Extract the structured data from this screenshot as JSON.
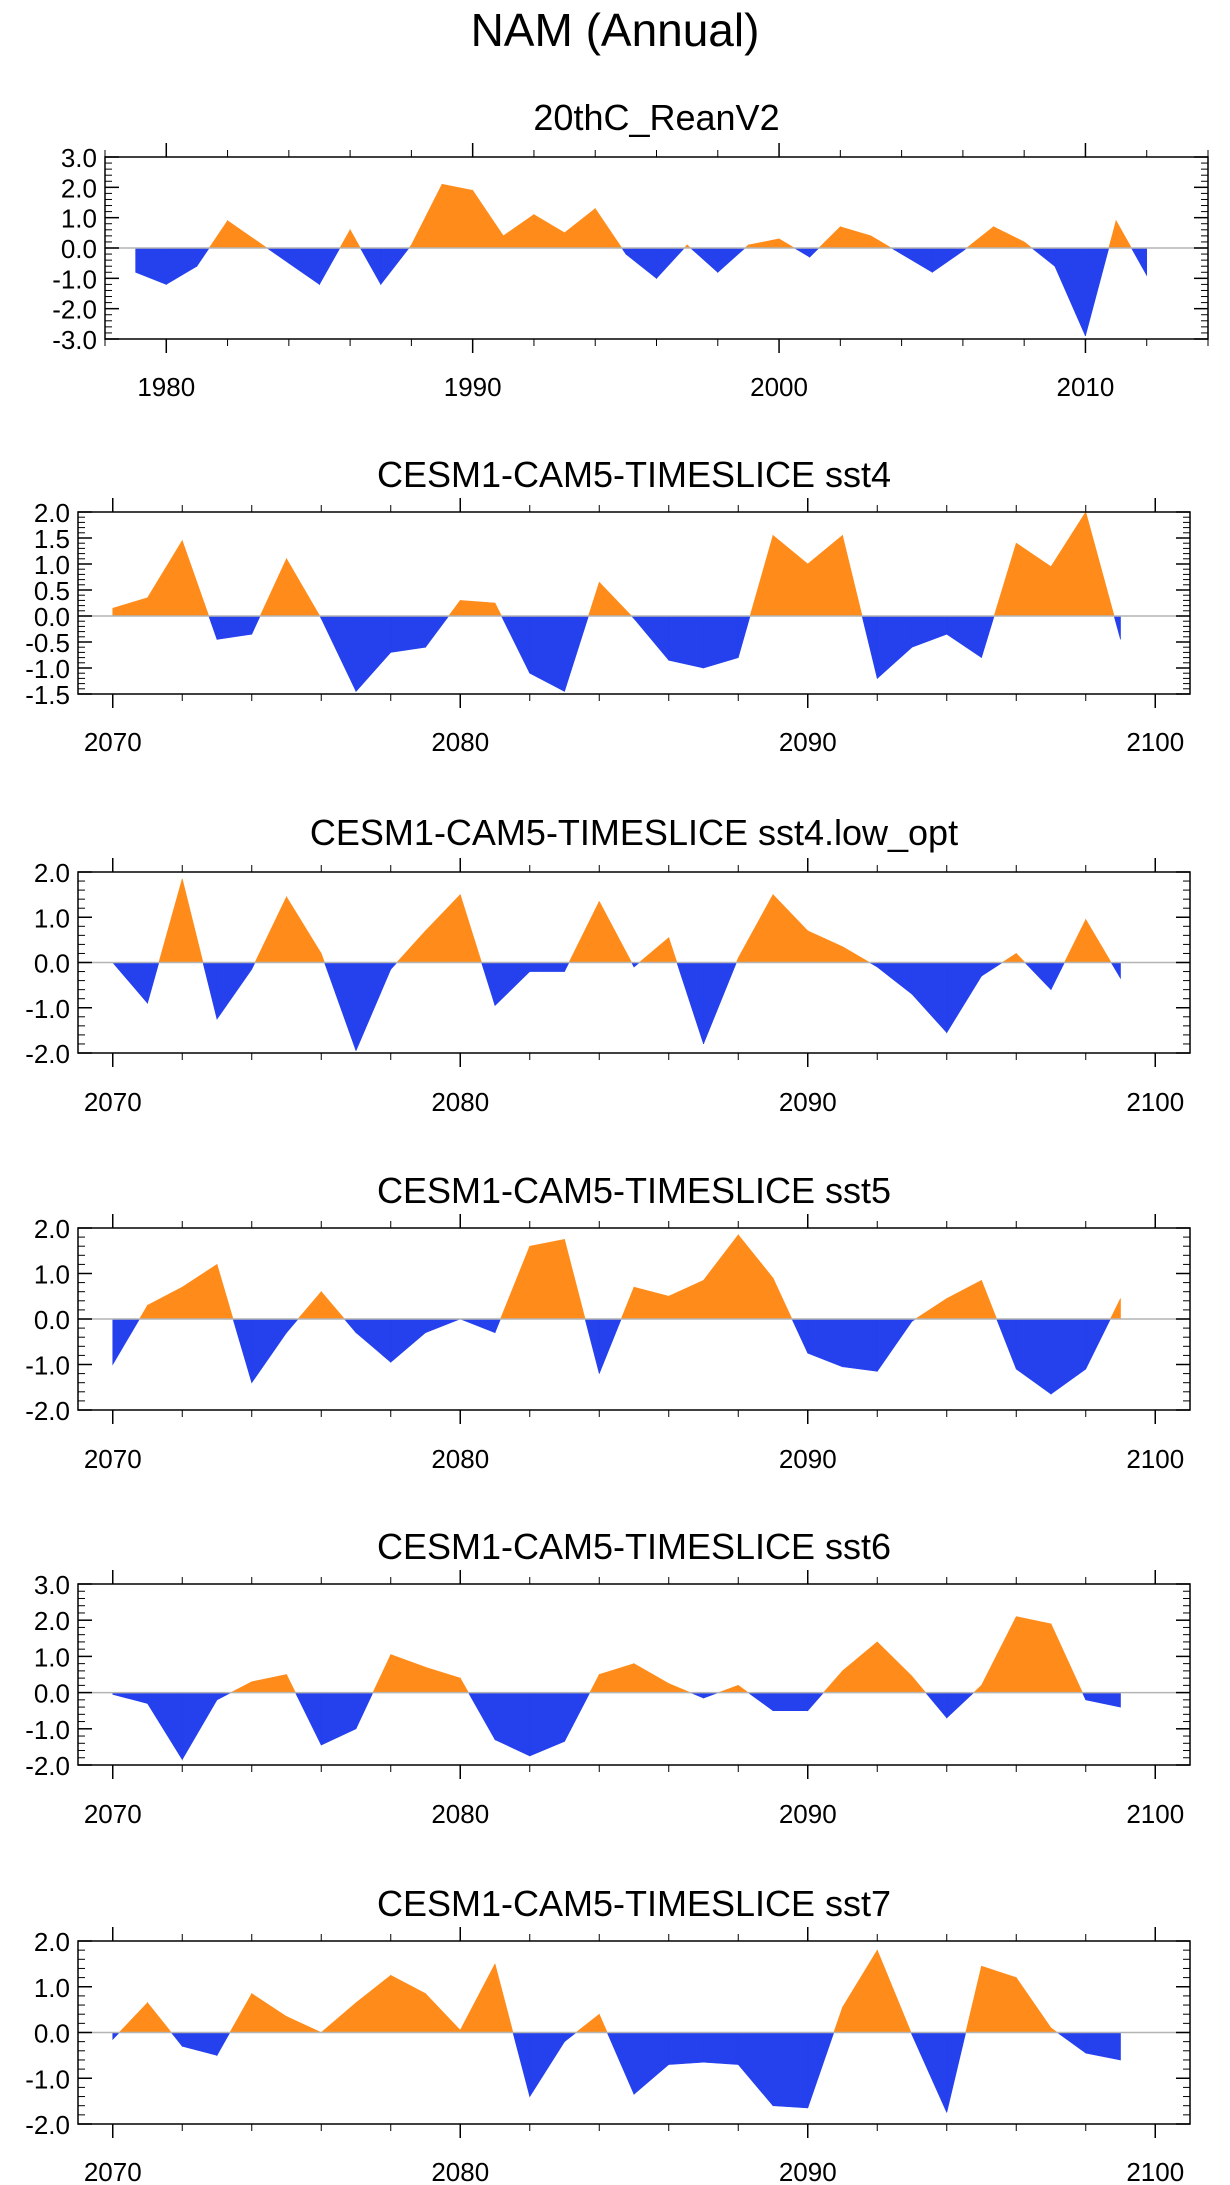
{
  "figure_title": "NAM (Annual)",
  "colors": {
    "positive": "#FF8C1A",
    "negative": "#2541EE",
    "zero_line": "#B4B4B4",
    "axis": "#000000"
  },
  "chart_data": [
    {
      "type": "area",
      "title": "20thC_ReanV2",
      "x": [
        1979,
        1980,
        1981,
        1982,
        1983,
        1984,
        1985,
        1986,
        1987,
        1988,
        1989,
        1990,
        1991,
        1992,
        1993,
        1994,
        1995,
        1996,
        1997,
        1998,
        1999,
        2000,
        2001,
        2002,
        2003,
        2004,
        2005,
        2006,
        2007,
        2008,
        2009,
        2010,
        2011,
        2012
      ],
      "values": [
        -0.8,
        -1.2,
        -0.6,
        0.9,
        0.2,
        -0.5,
        -1.2,
        0.6,
        -1.2,
        0.1,
        2.1,
        1.9,
        0.4,
        1.1,
        0.5,
        1.3,
        -0.2,
        -1.0,
        0.1,
        -0.8,
        0.1,
        0.3,
        -0.3,
        0.7,
        0.4,
        -0.2,
        -0.8,
        -0.1,
        0.7,
        0.2,
        -0.6,
        -2.9,
        0.9,
        -0.9
      ],
      "xlim": [
        1978,
        2014
      ],
      "ylim": [
        -3.0,
        3.0
      ],
      "xticks": [
        "1980",
        "1990",
        "2000",
        "2010"
      ],
      "yticks": [
        "3.0",
        "2.0",
        "1.0",
        "0.0",
        "-1.0",
        "-2.0",
        "-3.0"
      ]
    },
    {
      "type": "area",
      "title": "CESM1-CAM5-TIMESLICE sst4",
      "x": [
        2070,
        2071,
        2072,
        2073,
        2074,
        2075,
        2076,
        2077,
        2078,
        2079,
        2080,
        2081,
        2082,
        2083,
        2084,
        2085,
        2086,
        2087,
        2088,
        2089,
        2090,
        2091,
        2092,
        2093,
        2094,
        2095,
        2096,
        2097,
        2098,
        2099
      ],
      "values": [
        0.15,
        0.35,
        1.45,
        -0.45,
        -0.35,
        1.1,
        -0.05,
        -1.45,
        -0.7,
        -0.6,
        0.3,
        0.25,
        -1.1,
        -1.45,
        0.65,
        -0.05,
        -0.85,
        -1.0,
        -0.8,
        1.55,
        1.0,
        1.55,
        -1.2,
        -0.6,
        -0.35,
        -0.8,
        1.4,
        0.95,
        2.0,
        -0.45
      ],
      "xlim": [
        2069,
        2101
      ],
      "ylim": [
        -1.5,
        2.0
      ],
      "xticks": [
        "2070",
        "2080",
        "2090",
        "2100"
      ],
      "yticks": [
        "2.0",
        "1.5",
        "1.0",
        "0.5",
        "0.0",
        "-0.5",
        "-1.0",
        "-1.5"
      ]
    },
    {
      "type": "area",
      "title": "CESM1-CAM5-TIMESLICE sst4.low_opt",
      "x": [
        2070,
        2071,
        2072,
        2073,
        2074,
        2075,
        2076,
        2077,
        2078,
        2079,
        2080,
        2081,
        2082,
        2083,
        2084,
        2085,
        2086,
        2087,
        2088,
        2089,
        2090,
        2091,
        2092,
        2093,
        2094,
        2095,
        2096,
        2097,
        2098,
        2099
      ],
      "values": [
        0.0,
        -0.9,
        1.85,
        -1.25,
        -0.15,
        1.45,
        0.2,
        -1.95,
        -0.15,
        0.7,
        1.5,
        -0.95,
        -0.2,
        -0.2,
        1.35,
        -0.1,
        0.55,
        -1.8,
        0.1,
        1.5,
        0.7,
        0.35,
        -0.1,
        -0.7,
        -1.55,
        -0.3,
        0.2,
        -0.6,
        0.95,
        -0.35
      ],
      "xlim": [
        2069,
        2101
      ],
      "ylim": [
        -2.0,
        2.0
      ],
      "xticks": [
        "2070",
        "2080",
        "2090",
        "2100"
      ],
      "yticks": [
        "2.0",
        "1.0",
        "0.0",
        "-1.0",
        "-2.0"
      ]
    },
    {
      "type": "area",
      "title": "CESM1-CAM5-TIMESLICE sst5",
      "x": [
        2070,
        2071,
        2072,
        2073,
        2074,
        2075,
        2076,
        2077,
        2078,
        2079,
        2080,
        2081,
        2082,
        2083,
        2084,
        2085,
        2086,
        2087,
        2088,
        2089,
        2090,
        2091,
        2092,
        2093,
        2094,
        2095,
        2096,
        2097,
        2098,
        2099
      ],
      "values": [
        -1.0,
        0.3,
        0.7,
        1.2,
        -1.4,
        -0.3,
        0.6,
        -0.3,
        -0.95,
        -0.3,
        0.0,
        -0.3,
        1.6,
        1.75,
        -1.2,
        0.7,
        0.5,
        0.85,
        1.85,
        0.9,
        -0.75,
        -1.05,
        -1.15,
        -0.05,
        0.45,
        0.85,
        -1.1,
        -1.65,
        -1.1,
        0.45
      ],
      "xlim": [
        2069,
        2101
      ],
      "ylim": [
        -2.0,
        2.0
      ],
      "xticks": [
        "2070",
        "2080",
        "2090",
        "2100"
      ],
      "yticks": [
        "2.0",
        "1.0",
        "0.0",
        "-1.0",
        "-2.0"
      ]
    },
    {
      "type": "area",
      "title": "CESM1-CAM5-TIMESLICE sst6",
      "x": [
        2070,
        2071,
        2072,
        2073,
        2074,
        2075,
        2076,
        2077,
        2078,
        2079,
        2080,
        2081,
        2082,
        2083,
        2084,
        2085,
        2086,
        2087,
        2088,
        2089,
        2090,
        2091,
        2092,
        2093,
        2094,
        2095,
        2096,
        2097,
        2098,
        2099
      ],
      "values": [
        -0.05,
        -0.3,
        -1.85,
        -0.2,
        0.3,
        0.5,
        -1.45,
        -1.0,
        1.05,
        0.7,
        0.4,
        -1.3,
        -1.75,
        -1.35,
        0.5,
        0.8,
        0.25,
        -0.15,
        0.2,
        -0.5,
        -0.5,
        0.6,
        1.4,
        0.45,
        -0.7,
        0.2,
        2.1,
        1.9,
        -0.2,
        -0.4
      ],
      "xlim": [
        2069,
        2101
      ],
      "ylim": [
        -2.0,
        3.0
      ],
      "xticks": [
        "2070",
        "2080",
        "2090",
        "2100"
      ],
      "yticks": [
        "3.0",
        "2.0",
        "1.0",
        "0.0",
        "-1.0",
        "-2.0"
      ]
    },
    {
      "type": "area",
      "title": "CESM1-CAM5-TIMESLICE sst7",
      "x": [
        2070,
        2071,
        2072,
        2073,
        2074,
        2075,
        2076,
        2077,
        2078,
        2079,
        2080,
        2081,
        2082,
        2083,
        2084,
        2085,
        2086,
        2087,
        2088,
        2089,
        2090,
        2091,
        2092,
        2093,
        2094,
        2095,
        2096,
        2097,
        2098,
        2099
      ],
      "values": [
        -0.15,
        0.65,
        -0.3,
        -0.5,
        0.85,
        0.35,
        0.0,
        0.65,
        1.25,
        0.85,
        0.05,
        1.5,
        -1.4,
        -0.2,
        0.4,
        -1.35,
        -0.7,
        -0.65,
        -0.7,
        -1.6,
        -1.65,
        0.55,
        1.8,
        -0.05,
        -1.75,
        1.45,
        1.2,
        0.1,
        -0.45,
        -0.6
      ],
      "xlim": [
        2069,
        2101
      ],
      "ylim": [
        -2.0,
        2.0
      ],
      "xticks": [
        "2070",
        "2080",
        "2090",
        "2100"
      ],
      "yticks": [
        "2.0",
        "1.0",
        "0.0",
        "-1.0",
        "-2.0"
      ]
    }
  ]
}
